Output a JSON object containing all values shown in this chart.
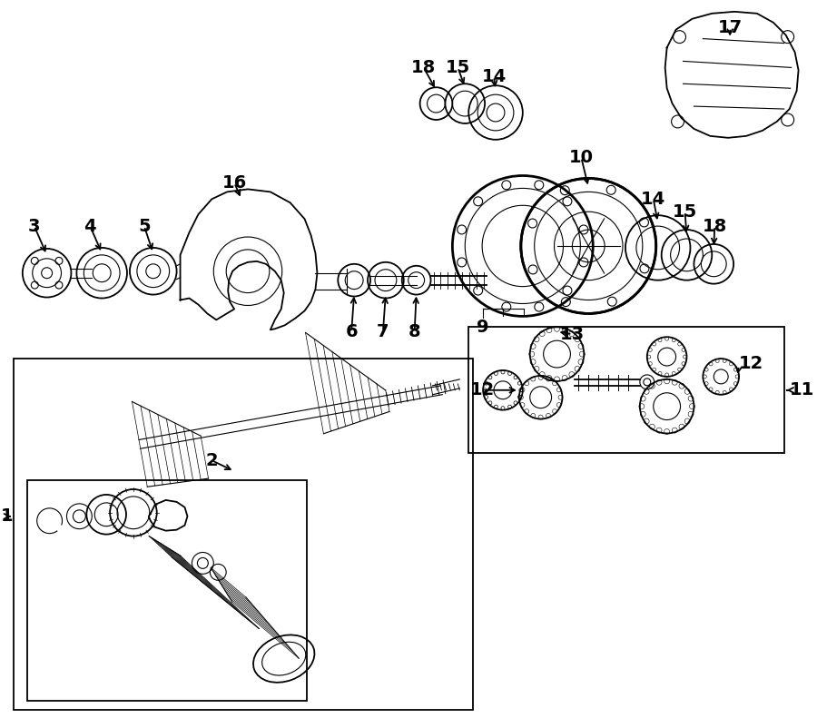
{
  "bg_color": "#ffffff",
  "line_color": "#000000",
  "fig_width": 9.0,
  "fig_height": 8.02,
  "dpi": 100,
  "label_fontsize": 14,
  "label_fontweight": "bold"
}
